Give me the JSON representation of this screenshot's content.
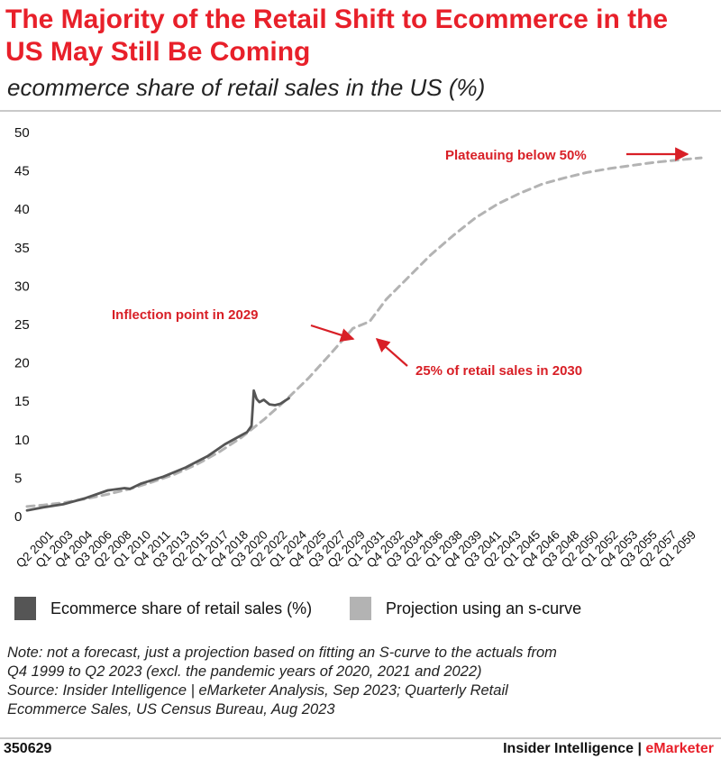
{
  "header": {
    "title_line1": "The Majority of the Retail Shift to Ecommerce in the",
    "title_line2": "US May Still Be Coming",
    "subtitle": "ecommerce share of retail sales in the US (%)"
  },
  "colors": {
    "title": "#e8202a",
    "actual": "#555555",
    "projection": "#b3b3b3",
    "annotation": "#d81f26"
  },
  "chart_data": {
    "type": "line",
    "ylim": [
      0,
      50
    ],
    "yticks": [
      0,
      5,
      10,
      15,
      20,
      25,
      30,
      35,
      40,
      45,
      50
    ],
    "grid": false,
    "x_tick_labels": [
      "Q2 2001",
      "Q1 2003",
      "Q4 2004",
      "Q3 2006",
      "Q2 2008",
      "Q1 2010",
      "Q4 2011",
      "Q3 2013",
      "Q2 2015",
      "Q1 2017",
      "Q4 2018",
      "Q3 2020",
      "Q2 2022",
      "Q1 2024",
      "Q4 2025",
      "Q3 2027",
      "Q2 2029",
      "Q1 2031",
      "Q4 2032",
      "Q3 2034",
      "Q2 2036",
      "Q1 2038",
      "Q4 2039",
      "Q3 2041",
      "Q2 2043",
      "Q1 2045",
      "Q4 2046",
      "Q3 2048",
      "Q2 2050",
      "Q1 2052",
      "Q4 2053",
      "Q3 2055",
      "Q2 2057",
      "Q1 2059"
    ],
    "x_range": [
      1999.75,
      2060.25
    ],
    "series": [
      {
        "name": "Ecommerce share of retail sales (%)",
        "style": "solid",
        "x": [
          1999.75,
          2001.25,
          2003,
          2005,
          2007,
          2008.5,
          2009,
          2010,
          2012,
          2014,
          2016,
          2017.5,
          2018.5,
          2019.5,
          2019.9,
          2020.1,
          2020.35,
          2020.6,
          2021,
          2021.5,
          2022,
          2022.5,
          2023.25
        ],
        "y": [
          0.8,
          1.2,
          1.6,
          2.4,
          3.4,
          3.7,
          3.6,
          4.3,
          5.2,
          6.4,
          7.9,
          9.4,
          10.2,
          11.0,
          11.8,
          16.4,
          15.3,
          14.9,
          15.2,
          14.6,
          14.5,
          14.7,
          15.4
        ]
      },
      {
        "name": "Projection using an s-curve",
        "style": "dashed",
        "x": [
          1999.75,
          2001.25,
          2003,
          2005,
          2007,
          2009,
          2011,
          2013,
          2015,
          2017,
          2019,
          2021,
          2023,
          2025,
          2027,
          2029,
          2030.5,
          2032,
          2034,
          2036,
          2038,
          2040,
          2042,
          2044,
          2046,
          2048,
          2050,
          2052,
          2054,
          2056,
          2058,
          2060.25
        ],
        "y": [
          1.3,
          1.5,
          1.8,
          2.3,
          2.9,
          3.6,
          4.5,
          5.5,
          6.8,
          8.4,
          10.3,
          12.6,
          15.2,
          18.0,
          21.2,
          24.5,
          25.4,
          28.3,
          31.2,
          34.1,
          36.6,
          38.9,
          40.7,
          42.1,
          43.3,
          44.1,
          44.8,
          45.3,
          45.7,
          46.1,
          46.4,
          46.7
        ]
      }
    ],
    "annotations": [
      {
        "text": "Plateauing below 50%"
      },
      {
        "text": "Inflection point in 2029"
      },
      {
        "text": "25% of retail sales in 2030"
      }
    ]
  },
  "legend": {
    "items": [
      {
        "label": "Ecommerce share of retail sales (%)",
        "color": "#555555"
      },
      {
        "label": "Projection using an s-curve",
        "color": "#b3b3b3"
      }
    ]
  },
  "note": {
    "line1": "Note: not a forecast, just a projection based on fitting an S-curve to the actuals from",
    "line2": "Q4 1999 to Q2 2023 (excl. the pandemic years of 2020, 2021 and 2022)",
    "line3": "Source: Insider Intelligence | eMarketer Analysis, Sep 2023; Quarterly Retail",
    "line4": "Ecommerce Sales, US Census Bureau, Aug 2023"
  },
  "footer": {
    "chart_id": "350629",
    "brand_main": "Insider Intelligence | ",
    "brand_accent": "eMarketer"
  }
}
